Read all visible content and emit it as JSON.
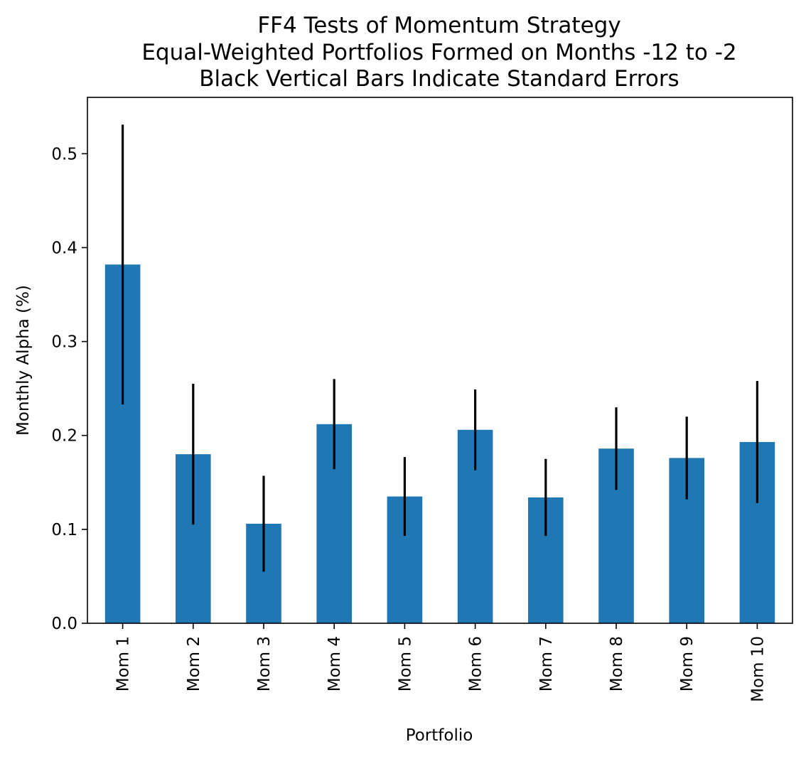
{
  "chart_data": {
    "type": "bar",
    "title_lines": [
      "FF4 Tests of Momentum Strategy",
      "Equal-Weighted Portfolios Formed on Months -12 to -2",
      "Black Vertical Bars Indicate Standard Errors"
    ],
    "xlabel": "Portfolio",
    "ylabel": "Monthly Alpha (%)",
    "categories": [
      "Mom 1",
      "Mom 2",
      "Mom 3",
      "Mom 4",
      "Mom 5",
      "Mom 6",
      "Mom 7",
      "Mom 8",
      "Mom 9",
      "Mom 10"
    ],
    "values": [
      0.382,
      0.18,
      0.106,
      0.212,
      0.135,
      0.206,
      0.134,
      0.186,
      0.176,
      0.193
    ],
    "std_errors": [
      0.149,
      0.075,
      0.051,
      0.048,
      0.042,
      0.043,
      0.041,
      0.044,
      0.044,
      0.065
    ],
    "ylim": [
      0,
      0.56
    ],
    "yticks": [
      0.0,
      0.1,
      0.2,
      0.3,
      0.4,
      0.5
    ],
    "ytick_labels": [
      "0.0",
      "0.1",
      "0.2",
      "0.3",
      "0.4",
      "0.5"
    ],
    "grid": false,
    "bar_color": "#1f77b4",
    "error_color": "#000000"
  }
}
